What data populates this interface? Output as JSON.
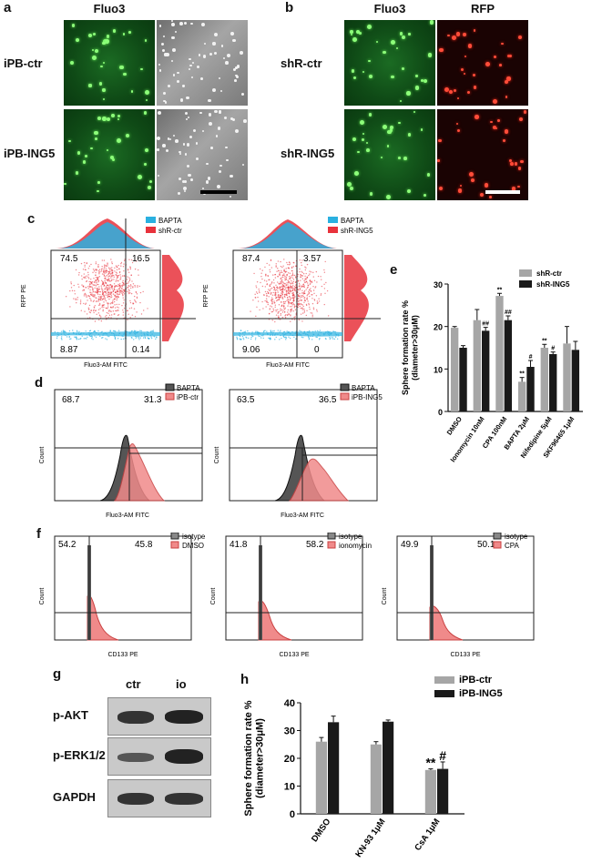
{
  "panels": {
    "a": "a",
    "b": "b",
    "c": "c",
    "d": "d",
    "e": "e",
    "f": "f",
    "g": "g",
    "h": "h"
  },
  "panel_a": {
    "header": "Fluo3",
    "rows": [
      "iPB-ctr",
      "iPB-ING5"
    ]
  },
  "panel_b": {
    "headers": [
      "Fluo3",
      "RFP"
    ],
    "rows": [
      "shR-ctr",
      "shR-ING5"
    ]
  },
  "panel_c": {
    "plots": [
      {
        "legend": [
          "BAPTA",
          "shR-ctr"
        ],
        "q": [
          "74.5",
          "16.5",
          "8.87",
          "0.14"
        ]
      },
      {
        "legend": [
          "BAPTA",
          "shR-ING5"
        ],
        "q": [
          "87.4",
          "3.57",
          "9.06",
          "0"
        ]
      }
    ],
    "ylabel": "RFP PE",
    "xlabel": "Fluo3-AM FITC",
    "colors": {
      "bapta": "#2ab0e0",
      "sample": "#e8323c"
    }
  },
  "panel_d": {
    "plots": [
      {
        "legend": [
          "BAPTA",
          "iPB-ctr"
        ],
        "left": "68.7",
        "right": "31.3"
      },
      {
        "legend": [
          "BAPTA",
          "iPB-ING5"
        ],
        "left": "63.5",
        "right": "36.5"
      }
    ],
    "ylabel": "Count",
    "xlabel": "Fluo3-AM FITC"
  },
  "panel_f": {
    "plots": [
      {
        "legend": [
          "isotype",
          "DMSO"
        ],
        "left": "54.2",
        "right": "45.8"
      },
      {
        "legend": [
          "isotype",
          "ionomycin"
        ],
        "left": "41.8",
        "right": "58.2"
      },
      {
        "legend": [
          "isotype",
          "CPA"
        ],
        "left": "49.9",
        "right": "50.1"
      }
    ],
    "ylabel": "Count",
    "xlabel": "CD133 PE"
  },
  "panel_g": {
    "cols": [
      "ctr",
      "io"
    ],
    "rows": [
      "p-AKT",
      "p-ERK1/2",
      "GAPDH"
    ]
  },
  "chart_data": [
    {
      "type": "bar",
      "panel": "e",
      "ylabel": "Sphere formation rate %\n(diameter>30μM)",
      "ylim": [
        0,
        30
      ],
      "yticks": [
        0,
        10,
        20,
        30
      ],
      "categories": [
        "DMSO",
        "Ionomycin 10nM",
        "CPA 100nM",
        "BAPTA 2μM",
        "Nifedipine 5μM",
        "SKF96465 1μM"
      ],
      "series": [
        {
          "name": "shR-ctr",
          "color": "#a6a6a6",
          "values": [
            19.7,
            21.5,
            27.2,
            7.0,
            15.0,
            16.0
          ],
          "errors": [
            0.3,
            2.5,
            0.6,
            1.0,
            0.8,
            4.0
          ]
        },
        {
          "name": "shR-ING5",
          "color": "#1a1a1a",
          "values": [
            15.0,
            19.0,
            21.5,
            10.5,
            13.5,
            14.5
          ],
          "errors": [
            0.5,
            0.8,
            1.0,
            1.5,
            0.5,
            2.0
          ]
        }
      ],
      "annotations": {
        "shR-ctr": [
          "",
          "",
          "**",
          "**",
          "**",
          ""
        ],
        "shR-ING5": [
          "",
          "##",
          "##",
          "#",
          "#",
          ""
        ]
      }
    },
    {
      "type": "bar",
      "panel": "h",
      "ylabel": "Sphere formation rate %\n(diameter>30μM)",
      "ylim": [
        0,
        40
      ],
      "yticks": [
        0,
        10,
        20,
        30,
        40
      ],
      "categories": [
        "DMSO",
        "KN-93 1μM",
        "CsA 1μM"
      ],
      "series": [
        {
          "name": "iPB-ctr",
          "color": "#a6a6a6",
          "values": [
            26.0,
            25.0,
            15.8
          ],
          "errors": [
            1.5,
            1.0,
            0.4
          ]
        },
        {
          "name": "iPB-ING5",
          "color": "#1a1a1a",
          "values": [
            33.0,
            33.2,
            16.2
          ],
          "errors": [
            2.2,
            0.6,
            2.5
          ]
        }
      ],
      "annotations": {
        "iPB-ctr": [
          "",
          "",
          "**"
        ],
        "iPB-ING5": [
          "",
          "",
          "#"
        ]
      }
    }
  ]
}
